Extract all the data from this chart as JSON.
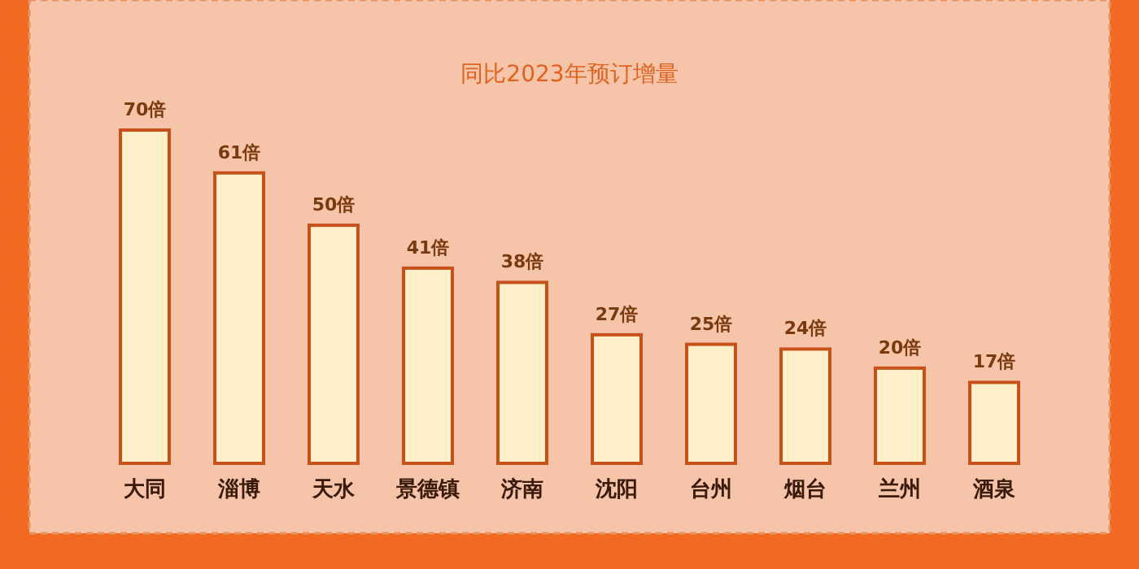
{
  "chart_data": {
    "type": "bar",
    "title": "同比2023年预订增量",
    "categories": [
      "大同",
      "淄博",
      "天水",
      "景德镇",
      "济南",
      "沈阳",
      "台州",
      "烟台",
      "兰州",
      "酒泉"
    ],
    "values": [
      70,
      61,
      50,
      41,
      38,
      27,
      25,
      24,
      20,
      17
    ],
    "value_labels": [
      "70倍",
      "61倍",
      "50倍",
      "41倍",
      "38倍",
      "27倍",
      "25倍",
      "24倍",
      "20倍",
      "17倍"
    ],
    "color": "#fdf0c8"
  }
}
